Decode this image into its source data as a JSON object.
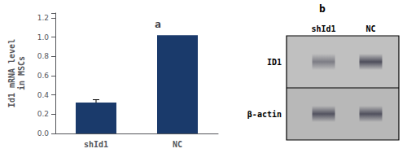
{
  "chart_data": [
    {
      "type": "bar",
      "title": "a",
      "categories": [
        "shId1",
        "NC"
      ],
      "values": [
        0.32,
        1.02
      ],
      "yerr": [
        0.03,
        0.0
      ],
      "color": "#1a3a6b",
      "ylabel": "Id1 mRNA level\nin MSCs",
      "ylim": [
        0,
        1.25
      ],
      "yticks": [
        {
          "value": 0,
          "label": "0.0"
        },
        0.2,
        0.4,
        0.6,
        0.8,
        {
          "value": 1,
          "label": "1.0"
        },
        1.2
      ],
      "grid": false
    },
    {
      "type": "blot",
      "title": "b",
      "categories": [
        "shId1",
        "NC"
      ],
      "rows": [
        "ID1",
        "β-actin"
      ]
    }
  ]
}
